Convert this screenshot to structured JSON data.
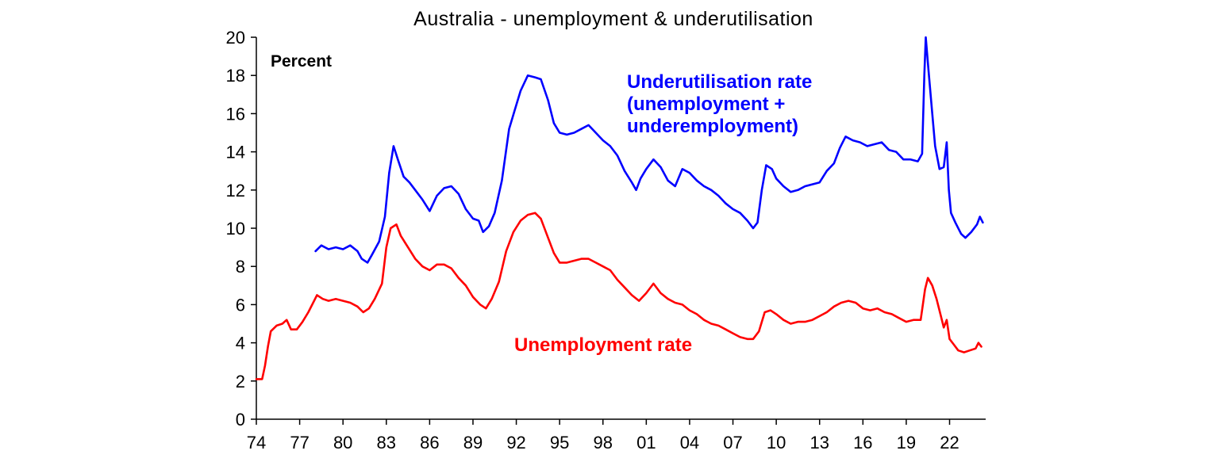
{
  "chart_data": {
    "type": "line",
    "title": "Australia - unemployment & underutilisation",
    "unit_label": "Percent",
    "ylim": [
      0,
      20
    ],
    "yticks": [
      0,
      2,
      4,
      6,
      8,
      10,
      12,
      14,
      16,
      18,
      20
    ],
    "xlim": [
      1974,
      2024.5
    ],
    "xticks": [
      {
        "year": 1974,
        "label": "74"
      },
      {
        "year": 1977,
        "label": "77"
      },
      {
        "year": 1980,
        "label": "80"
      },
      {
        "year": 1983,
        "label": "83"
      },
      {
        "year": 1986,
        "label": "86"
      },
      {
        "year": 1989,
        "label": "89"
      },
      {
        "year": 1992,
        "label": "92"
      },
      {
        "year": 1995,
        "label": "95"
      },
      {
        "year": 1998,
        "label": "98"
      },
      {
        "year": 2001,
        "label": "01"
      },
      {
        "year": 2004,
        "label": "04"
      },
      {
        "year": 2007,
        "label": "07"
      },
      {
        "year": 2010,
        "label": "10"
      },
      {
        "year": 2013,
        "label": "13"
      },
      {
        "year": 2016,
        "label": "16"
      },
      {
        "year": 2019,
        "label": "19"
      },
      {
        "year": 2022,
        "label": "22"
      }
    ],
    "grid": false,
    "legend": "inline labels",
    "series": [
      {
        "name": "Underutilisation rate",
        "label_lines": [
          "Underutilisation rate",
          "(unemployment +",
          "underemployment)"
        ],
        "color": "#0000ff",
        "points": [
          [
            1978.1,
            8.8
          ],
          [
            1978.5,
            9.1
          ],
          [
            1979.0,
            8.9
          ],
          [
            1979.5,
            9.0
          ],
          [
            1980.0,
            8.9
          ],
          [
            1980.5,
            9.1
          ],
          [
            1981.0,
            8.8
          ],
          [
            1981.3,
            8.4
          ],
          [
            1981.7,
            8.2
          ],
          [
            1982.0,
            8.6
          ],
          [
            1982.5,
            9.3
          ],
          [
            1982.9,
            10.6
          ],
          [
            1983.2,
            12.9
          ],
          [
            1983.5,
            14.3
          ],
          [
            1983.8,
            13.6
          ],
          [
            1984.2,
            12.7
          ],
          [
            1984.6,
            12.4
          ],
          [
            1985.0,
            12.0
          ],
          [
            1985.5,
            11.5
          ],
          [
            1986.0,
            10.9
          ],
          [
            1986.5,
            11.7
          ],
          [
            1987.0,
            12.1
          ],
          [
            1987.5,
            12.2
          ],
          [
            1988.0,
            11.8
          ],
          [
            1988.5,
            11.0
          ],
          [
            1989.0,
            10.5
          ],
          [
            1989.4,
            10.4
          ],
          [
            1989.7,
            9.8
          ],
          [
            1990.1,
            10.1
          ],
          [
            1990.5,
            10.8
          ],
          [
            1991.0,
            12.5
          ],
          [
            1991.5,
            15.2
          ],
          [
            1991.9,
            16.2
          ],
          [
            1992.3,
            17.2
          ],
          [
            1992.8,
            18.0
          ],
          [
            1993.3,
            17.9
          ],
          [
            1993.7,
            17.8
          ],
          [
            1994.2,
            16.7
          ],
          [
            1994.6,
            15.5
          ],
          [
            1995.0,
            15.0
          ],
          [
            1995.5,
            14.9
          ],
          [
            1996.0,
            15.0
          ],
          [
            1996.5,
            15.2
          ],
          [
            1997.0,
            15.4
          ],
          [
            1997.5,
            15.0
          ],
          [
            1998.0,
            14.6
          ],
          [
            1998.5,
            14.3
          ],
          [
            1999.0,
            13.8
          ],
          [
            1999.5,
            13.0
          ],
          [
            2000.0,
            12.4
          ],
          [
            2000.3,
            12.0
          ],
          [
            2000.6,
            12.6
          ],
          [
            2001.0,
            13.1
          ],
          [
            2001.5,
            13.6
          ],
          [
            2002.0,
            13.2
          ],
          [
            2002.5,
            12.5
          ],
          [
            2003.0,
            12.2
          ],
          [
            2003.5,
            13.1
          ],
          [
            2004.0,
            12.9
          ],
          [
            2004.5,
            12.5
          ],
          [
            2005.0,
            12.2
          ],
          [
            2005.5,
            12.0
          ],
          [
            2006.0,
            11.7
          ],
          [
            2006.5,
            11.3
          ],
          [
            2007.0,
            11.0
          ],
          [
            2007.5,
            10.8
          ],
          [
            2008.0,
            10.4
          ],
          [
            2008.4,
            10.0
          ],
          [
            2008.7,
            10.3
          ],
          [
            2009.0,
            12.0
          ],
          [
            2009.3,
            13.3
          ],
          [
            2009.7,
            13.1
          ],
          [
            2010.0,
            12.6
          ],
          [
            2010.5,
            12.2
          ],
          [
            2011.0,
            11.9
          ],
          [
            2011.5,
            12.0
          ],
          [
            2012.0,
            12.2
          ],
          [
            2012.5,
            12.3
          ],
          [
            2013.0,
            12.4
          ],
          [
            2013.5,
            13.0
          ],
          [
            2014.0,
            13.4
          ],
          [
            2014.4,
            14.2
          ],
          [
            2014.8,
            14.8
          ],
          [
            2015.3,
            14.6
          ],
          [
            2015.8,
            14.5
          ],
          [
            2016.3,
            14.3
          ],
          [
            2016.8,
            14.4
          ],
          [
            2017.3,
            14.5
          ],
          [
            2017.8,
            14.1
          ],
          [
            2018.3,
            14.0
          ],
          [
            2018.8,
            13.6
          ],
          [
            2019.3,
            13.6
          ],
          [
            2019.8,
            13.5
          ],
          [
            2020.1,
            13.9
          ],
          [
            2020.25,
            18.0
          ],
          [
            2020.35,
            20.0
          ],
          [
            2020.55,
            18.2
          ],
          [
            2020.8,
            16.0
          ],
          [
            2021.0,
            14.3
          ],
          [
            2021.3,
            13.1
          ],
          [
            2021.6,
            13.2
          ],
          [
            2021.8,
            14.5
          ],
          [
            2021.95,
            12.0
          ],
          [
            2022.1,
            10.8
          ],
          [
            2022.4,
            10.3
          ],
          [
            2022.8,
            9.7
          ],
          [
            2023.1,
            9.5
          ],
          [
            2023.5,
            9.8
          ],
          [
            2023.9,
            10.2
          ],
          [
            2024.1,
            10.6
          ],
          [
            2024.3,
            10.3
          ]
        ]
      },
      {
        "name": "Unemployment rate",
        "label_lines": [
          "Unemployment rate"
        ],
        "color": "#ff0000",
        "points": [
          [
            1974.0,
            2.1
          ],
          [
            1974.4,
            2.1
          ],
          [
            1974.6,
            2.8
          ],
          [
            1974.8,
            3.8
          ],
          [
            1975.0,
            4.6
          ],
          [
            1975.4,
            4.9
          ],
          [
            1975.8,
            5.0
          ],
          [
            1976.1,
            5.2
          ],
          [
            1976.4,
            4.7
          ],
          [
            1976.8,
            4.7
          ],
          [
            1977.2,
            5.1
          ],
          [
            1977.6,
            5.6
          ],
          [
            1978.0,
            6.2
          ],
          [
            1978.2,
            6.5
          ],
          [
            1978.6,
            6.3
          ],
          [
            1979.0,
            6.2
          ],
          [
            1979.5,
            6.3
          ],
          [
            1980.0,
            6.2
          ],
          [
            1980.5,
            6.1
          ],
          [
            1981.0,
            5.9
          ],
          [
            1981.4,
            5.6
          ],
          [
            1981.8,
            5.8
          ],
          [
            1982.2,
            6.3
          ],
          [
            1982.7,
            7.1
          ],
          [
            1983.0,
            9.0
          ],
          [
            1983.3,
            10.0
          ],
          [
            1983.7,
            10.2
          ],
          [
            1984.0,
            9.6
          ],
          [
            1984.5,
            9.0
          ],
          [
            1985.0,
            8.4
          ],
          [
            1985.5,
            8.0
          ],
          [
            1986.0,
            7.8
          ],
          [
            1986.5,
            8.1
          ],
          [
            1987.0,
            8.1
          ],
          [
            1987.5,
            7.9
          ],
          [
            1988.0,
            7.4
          ],
          [
            1988.5,
            7.0
          ],
          [
            1989.0,
            6.4
          ],
          [
            1989.5,
            6.0
          ],
          [
            1989.9,
            5.8
          ],
          [
            1990.3,
            6.3
          ],
          [
            1990.8,
            7.2
          ],
          [
            1991.3,
            8.8
          ],
          [
            1991.8,
            9.8
          ],
          [
            1992.3,
            10.4
          ],
          [
            1992.8,
            10.7
          ],
          [
            1993.3,
            10.8
          ],
          [
            1993.7,
            10.5
          ],
          [
            1994.2,
            9.5
          ],
          [
            1994.6,
            8.7
          ],
          [
            1995.0,
            8.2
          ],
          [
            1995.5,
            8.2
          ],
          [
            1996.0,
            8.3
          ],
          [
            1996.5,
            8.4
          ],
          [
            1997.0,
            8.4
          ],
          [
            1997.5,
            8.2
          ],
          [
            1998.0,
            8.0
          ],
          [
            1998.5,
            7.8
          ],
          [
            1999.0,
            7.3
          ],
          [
            1999.5,
            6.9
          ],
          [
            2000.0,
            6.5
          ],
          [
            2000.5,
            6.2
          ],
          [
            2001.0,
            6.6
          ],
          [
            2001.5,
            7.1
          ],
          [
            2002.0,
            6.6
          ],
          [
            2002.5,
            6.3
          ],
          [
            2003.0,
            6.1
          ],
          [
            2003.5,
            6.0
          ],
          [
            2004.0,
            5.7
          ],
          [
            2004.5,
            5.5
          ],
          [
            2005.0,
            5.2
          ],
          [
            2005.5,
            5.0
          ],
          [
            2006.0,
            4.9
          ],
          [
            2006.5,
            4.7
          ],
          [
            2007.0,
            4.5
          ],
          [
            2007.5,
            4.3
          ],
          [
            2008.0,
            4.2
          ],
          [
            2008.4,
            4.2
          ],
          [
            2008.8,
            4.6
          ],
          [
            2009.2,
            5.6
          ],
          [
            2009.6,
            5.7
          ],
          [
            2010.0,
            5.5
          ],
          [
            2010.5,
            5.2
          ],
          [
            2011.0,
            5.0
          ],
          [
            2011.5,
            5.1
          ],
          [
            2012.0,
            5.1
          ],
          [
            2012.5,
            5.2
          ],
          [
            2013.0,
            5.4
          ],
          [
            2013.5,
            5.6
          ],
          [
            2014.0,
            5.9
          ],
          [
            2014.5,
            6.1
          ],
          [
            2015.0,
            6.2
          ],
          [
            2015.5,
            6.1
          ],
          [
            2016.0,
            5.8
          ],
          [
            2016.5,
            5.7
          ],
          [
            2017.0,
            5.8
          ],
          [
            2017.5,
            5.6
          ],
          [
            2018.0,
            5.5
          ],
          [
            2018.5,
            5.3
          ],
          [
            2019.0,
            5.1
          ],
          [
            2019.5,
            5.2
          ],
          [
            2020.0,
            5.2
          ],
          [
            2020.3,
            6.8
          ],
          [
            2020.5,
            7.4
          ],
          [
            2020.8,
            7.0
          ],
          [
            2021.1,
            6.3
          ],
          [
            2021.4,
            5.4
          ],
          [
            2021.6,
            4.8
          ],
          [
            2021.8,
            5.2
          ],
          [
            2022.0,
            4.2
          ],
          [
            2022.3,
            3.9
          ],
          [
            2022.6,
            3.6
          ],
          [
            2023.0,
            3.5
          ],
          [
            2023.4,
            3.6
          ],
          [
            2023.8,
            3.7
          ],
          [
            2024.0,
            4.0
          ],
          [
            2024.2,
            3.8
          ]
        ]
      }
    ]
  }
}
